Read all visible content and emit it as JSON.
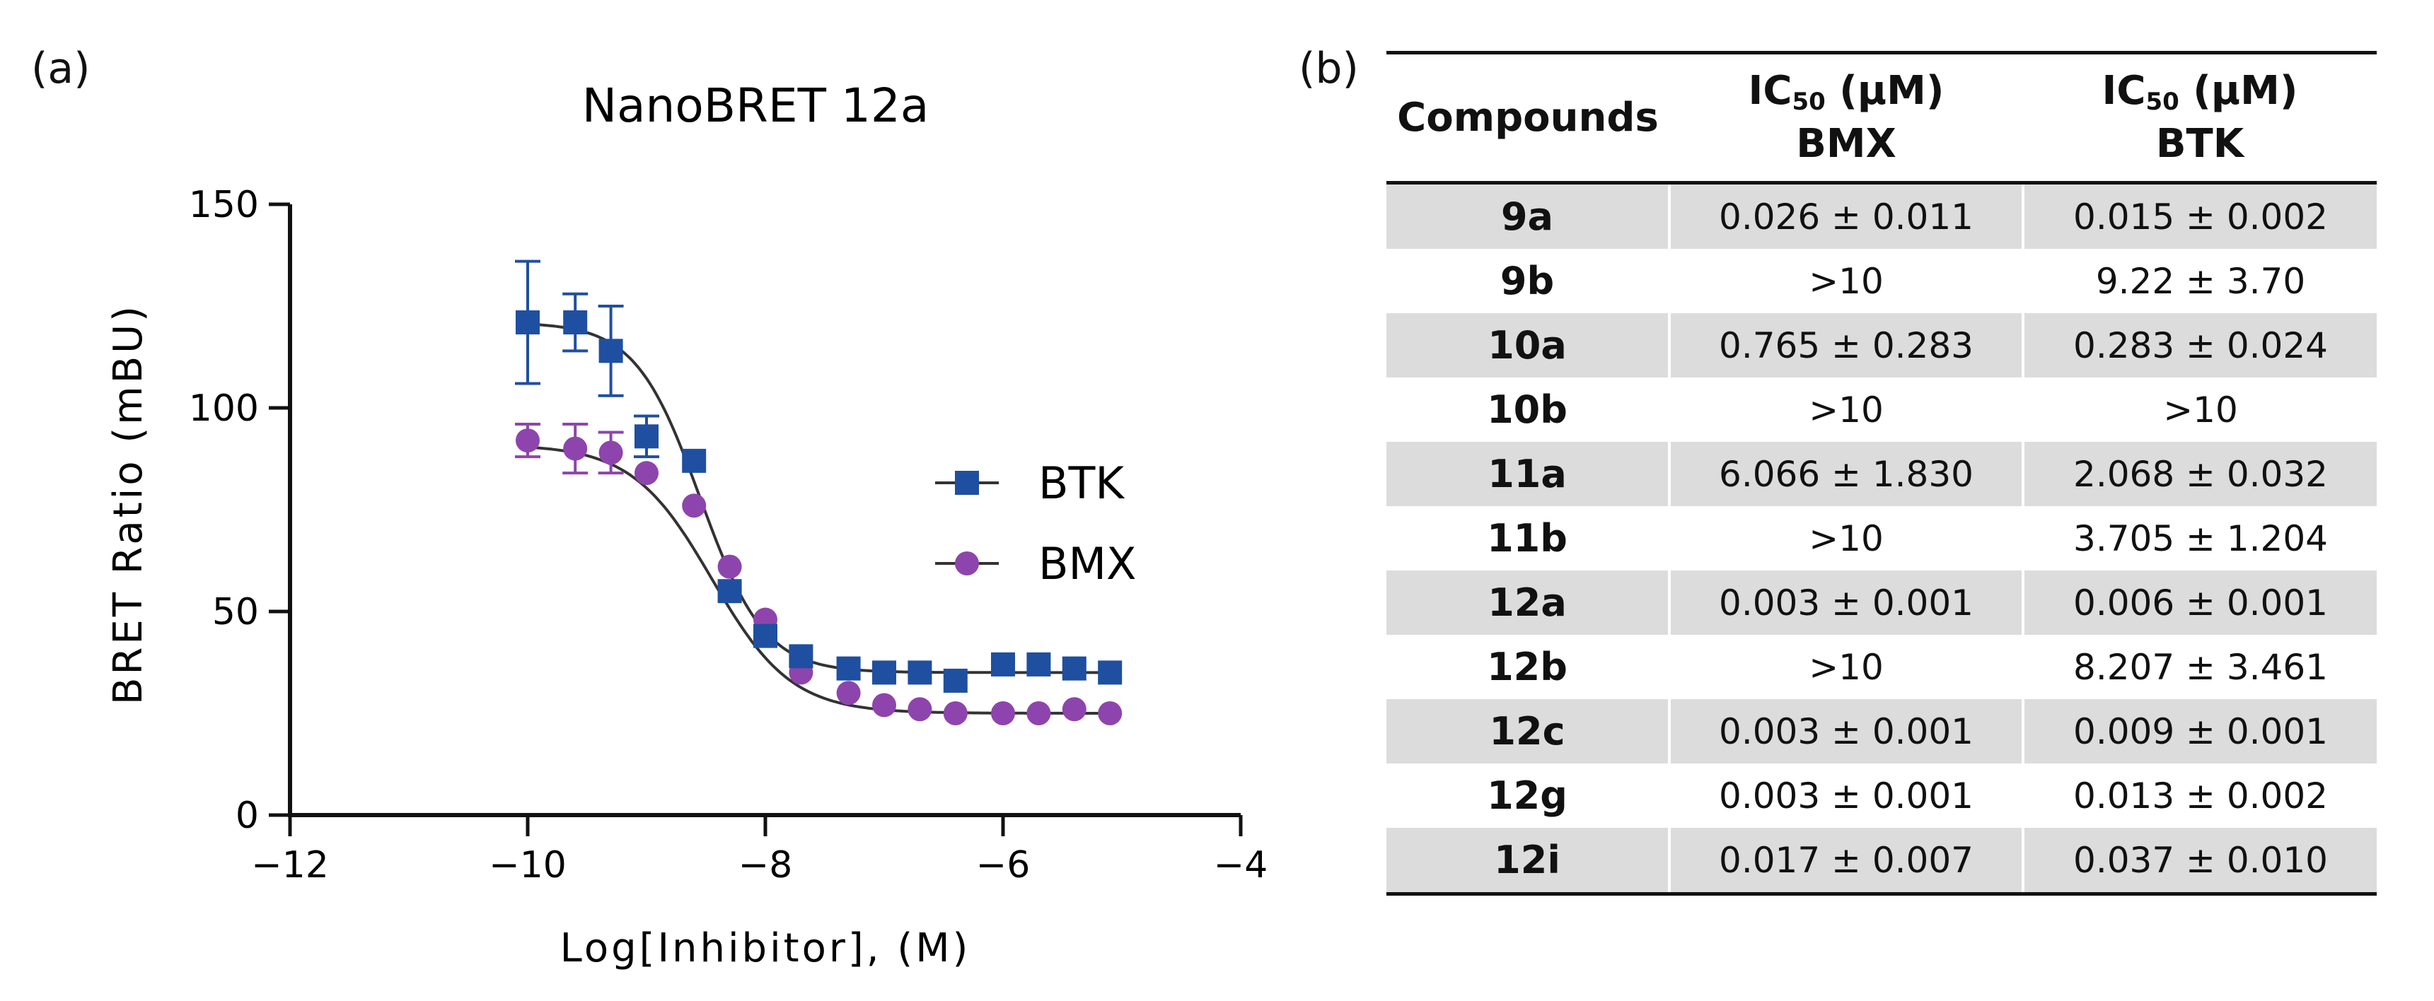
{
  "panel_a_label": "(a)",
  "panel_b_label": "(b)",
  "chart_data": {
    "type": "scatter",
    "title": "NanoBRET 12a",
    "xlabel": "Log[Inhibitor], (M)",
    "ylabel": "BRET Ratio (mBU)",
    "xlim": [
      -12,
      -4
    ],
    "ylim": [
      0,
      150
    ],
    "xticks": [
      -12,
      -10,
      -8,
      -6,
      -4
    ],
    "yticks": [
      0,
      50,
      100,
      150
    ],
    "xtick_labels": [
      "−12",
      "−10",
      "−8",
      "−6",
      "−4"
    ],
    "ytick_labels": [
      "0",
      "50",
      "100",
      "150"
    ],
    "grid": false,
    "legend_position": "right",
    "series": [
      {
        "name": "BTK",
        "marker": "square",
        "color": "#1f4fa0",
        "x": [
          -10.0,
          -9.6,
          -9.3,
          -9.0,
          -8.6,
          -8.3,
          -8.0,
          -7.7,
          -7.3,
          -7.0,
          -6.7,
          -6.4,
          -6.0,
          -5.7,
          -5.4,
          -5.1
        ],
        "y": [
          121,
          121,
          114,
          93,
          87,
          55,
          44,
          39,
          36,
          35,
          35,
          33,
          37,
          37,
          36,
          35
        ],
        "err": [
          15,
          7,
          11,
          5,
          0,
          0,
          0,
          0,
          0,
          0,
          0,
          0,
          0,
          0,
          0,
          0
        ],
        "fit": {
          "top": 121,
          "bottom": 35,
          "logIC50": -8.55,
          "hill": 1.6
        }
      },
      {
        "name": "BMX",
        "marker": "circle",
        "color": "#8e44ad",
        "x": [
          -10.0,
          -9.6,
          -9.3,
          -9.0,
          -8.6,
          -8.3,
          -8.0,
          -7.7,
          -7.3,
          -7.0,
          -6.7,
          -6.4,
          -6.0,
          -5.7,
          -5.4,
          -5.1
        ],
        "y": [
          92,
          90,
          89,
          84,
          76,
          61,
          48,
          35,
          30,
          27,
          26,
          25,
          25,
          25,
          26,
          25
        ],
        "err": [
          4,
          6,
          5,
          0,
          0,
          0,
          0,
          0,
          0,
          0,
          0,
          0,
          0,
          0,
          0,
          0
        ],
        "fit": {
          "top": 91,
          "bottom": 25,
          "logIC50": -8.45,
          "hill": 1.3
        }
      }
    ]
  },
  "table": {
    "headers": {
      "compounds": "Compounds",
      "ic_label": "IC",
      "ic_sub": "50",
      "ic_unit": " (μM)",
      "bmx": "BMX",
      "btk": "BTK"
    },
    "rows": [
      {
        "compound": "9a",
        "bmx": "0.026 ± 0.011",
        "btk": "0.015 ± 0.002"
      },
      {
        "compound": "9b",
        "bmx": ">10",
        "btk": "9.22 ± 3.70"
      },
      {
        "compound": "10a",
        "bmx": "0.765 ± 0.283",
        "btk": "0.283 ± 0.024"
      },
      {
        "compound": "10b",
        "bmx": ">10",
        "btk": ">10"
      },
      {
        "compound": "11a",
        "bmx": "6.066 ± 1.830",
        "btk": "2.068 ± 0.032"
      },
      {
        "compound": "11b",
        "bmx": ">10",
        "btk": "3.705 ± 1.204"
      },
      {
        "compound": "12a",
        "bmx": "0.003 ± 0.001",
        "btk": "0.006 ± 0.001"
      },
      {
        "compound": "12b",
        "bmx": ">10",
        "btk": "8.207 ± 3.461"
      },
      {
        "compound": "12c",
        "bmx": "0.003 ± 0.001",
        "btk": "0.009 ± 0.001"
      },
      {
        "compound": "12g",
        "bmx": "0.003 ± 0.001",
        "btk": "0.013 ± 0.002"
      },
      {
        "compound": "12i",
        "bmx": "0.017 ± 0.007",
        "btk": "0.037 ± 0.010"
      }
    ]
  }
}
